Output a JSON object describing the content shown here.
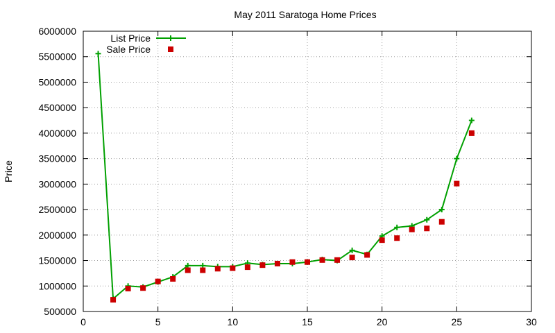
{
  "chart_data": {
    "type": "line",
    "title": "May 2011 Saratoga Home Prices",
    "xlabel": "",
    "ylabel": "Price",
    "xlim": [
      0,
      30
    ],
    "ylim": [
      500000,
      6000000
    ],
    "xticks": [
      0,
      5,
      10,
      15,
      20,
      25,
      30
    ],
    "yticks": [
      500000,
      1000000,
      1500000,
      2000000,
      2500000,
      3000000,
      3500000,
      4000000,
      4500000,
      5000000,
      5500000,
      6000000
    ],
    "grid": true,
    "legend_position": "top-left",
    "series": [
      {
        "name": "List Price",
        "style": "linespoints",
        "marker": "plus",
        "color": "#00a000",
        "x": [
          1,
          2,
          3,
          4,
          5,
          6,
          7,
          8,
          9,
          10,
          11,
          12,
          13,
          14,
          15,
          16,
          17,
          18,
          19,
          20,
          21,
          22,
          23,
          24,
          25,
          26
        ],
        "y": [
          5560000,
          750000,
          1000000,
          980000,
          1080000,
          1180000,
          1400000,
          1400000,
          1380000,
          1380000,
          1450000,
          1420000,
          1440000,
          1440000,
          1470000,
          1520000,
          1500000,
          1700000,
          1620000,
          1980000,
          2150000,
          2180000,
          2300000,
          2500000,
          3500000,
          4250000
        ]
      },
      {
        "name": "Sale Price",
        "style": "points",
        "marker": "square",
        "color": "#cc0000",
        "x": [
          2,
          3,
          4,
          5,
          6,
          7,
          8,
          9,
          10,
          11,
          12,
          13,
          14,
          15,
          16,
          17,
          18,
          19,
          20,
          21,
          22,
          23,
          24,
          25,
          26
        ],
        "y": [
          730000,
          950000,
          960000,
          1090000,
          1140000,
          1310000,
          1310000,
          1340000,
          1350000,
          1370000,
          1410000,
          1440000,
          1470000,
          1470000,
          1510000,
          1510000,
          1560000,
          1610000,
          1900000,
          1940000,
          2110000,
          2130000,
          2260000,
          3010000,
          4000000
        ]
      }
    ]
  }
}
